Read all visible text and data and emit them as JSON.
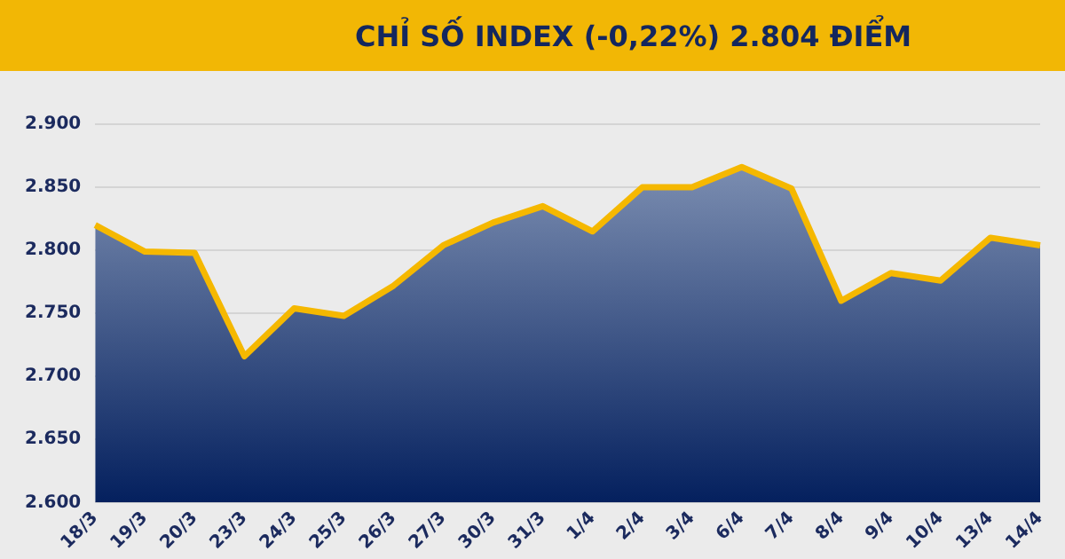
{
  "chart_data": {
    "type": "area",
    "title": "CHỈ SỐ INDEX (-0,22%) 2.804 ĐIỂM",
    "categories": [
      "18/3",
      "19/3",
      "20/3",
      "23/3",
      "24/3",
      "25/3",
      "26/3",
      "27/3",
      "30/3",
      "31/3",
      "1/4",
      "2/4",
      "3/4",
      "6/4",
      "7/4",
      "8/4",
      "9/4",
      "10/4",
      "13/4",
      "14/4"
    ],
    "series": [
      {
        "color": "#f5b800",
        "values": [
          2820,
          2799,
          2798,
          2716,
          2754,
          2748,
          2772,
          2804,
          2822,
          2835,
          2815,
          2850,
          2850,
          2866,
          2849,
          2760,
          2782,
          2776,
          2810,
          2804
        ]
      }
    ],
    "ylim": [
      2600,
      2900
    ],
    "yticks": [
      {
        "value": 2600,
        "label": "2.600"
      },
      {
        "value": 2650,
        "label": "2.650"
      },
      {
        "value": 2700,
        "label": "2.700"
      },
      {
        "value": 2750,
        "label": "2.750"
      },
      {
        "value": 2800,
        "label": "2.800"
      },
      {
        "value": 2850,
        "label": "2.850"
      },
      {
        "value": 2900,
        "label": "2.900"
      }
    ],
    "grid": "y",
    "legend": false,
    "marker": "none",
    "line_style": "solid"
  }
}
